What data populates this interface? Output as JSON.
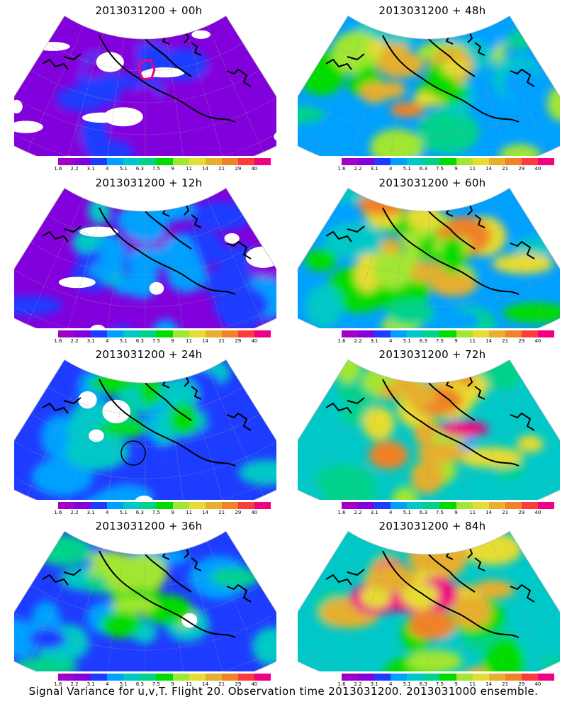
{
  "caption": "Signal Variance for u,v,T. Flight 20. Observation time 2013031200. 2013031000 ensemble.",
  "colorbar": {
    "levels": [
      "1.6",
      "2.2",
      "3.1",
      "4",
      "5.1",
      "6.3",
      "7.5",
      "9",
      "11",
      "14",
      "21",
      "29",
      "40"
    ],
    "colors": [
      "#a000c8",
      "#8200dc",
      "#1e3cff",
      "#00a0ff",
      "#00c8c8",
      "#00d28c",
      "#00dc00",
      "#a0e632",
      "#e6dc32",
      "#e6af2d",
      "#f08228",
      "#fa3c3c",
      "#f00082"
    ]
  },
  "panels": [
    {
      "title": "2013031200 + 00h",
      "intensity": 0.15,
      "has_marker": "polygon"
    },
    {
      "title": "2013031200 + 48h",
      "intensity": 0.68,
      "has_marker": "none"
    },
    {
      "title": "2013031200 + 12h",
      "intensity": 0.32,
      "has_marker": "none"
    },
    {
      "title": "2013031200 + 60h",
      "intensity": 0.76,
      "has_marker": "none"
    },
    {
      "title": "2013031200 + 24h",
      "intensity": 0.42,
      "has_marker": "circle"
    },
    {
      "title": "2013031200 + 72h",
      "intensity": 0.84,
      "has_marker": "none"
    },
    {
      "title": "2013031200 + 36h",
      "intensity": 0.55,
      "has_marker": "none"
    },
    {
      "title": "2013031200 + 84h",
      "intensity": 0.9,
      "has_marker": "none"
    }
  ]
}
